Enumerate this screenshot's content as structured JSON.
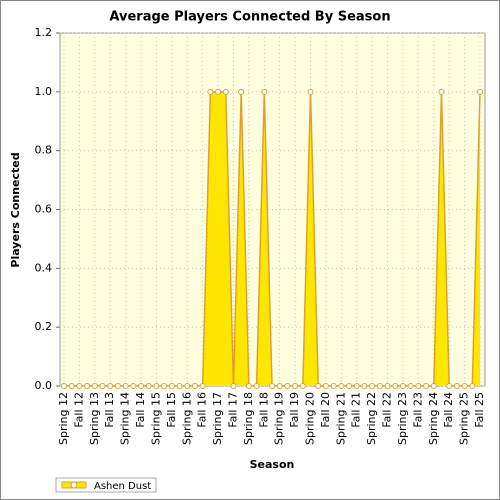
{
  "chart_data": {
    "type": "area",
    "title": "Average Players Connected By Season",
    "xlabel": "Season",
    "ylabel": "Players Connected",
    "categories": [
      "Spring 12",
      null,
      "Fall 12",
      null,
      "Spring 13",
      null,
      "Fall 13",
      null,
      "Spring 14",
      null,
      "Fall 14",
      null,
      "Spring 15",
      null,
      "Fall 15",
      null,
      "Spring 16",
      null,
      "Fall 16",
      null,
      "Spring 17",
      null,
      "Fall 17",
      null,
      "Spring 18",
      null,
      "Fall 18",
      null,
      "Spring 19",
      null,
      "Fall 19",
      null,
      "Spring 20",
      null,
      "Fall 20",
      null,
      "Spring 21",
      null,
      "Fall 21",
      null,
      "Spring 22",
      null,
      "Fall 22",
      null,
      "Spring 23",
      null,
      "Fall 23",
      null,
      "Spring 24",
      null,
      "Fall 24",
      null,
      "Spring 25",
      null,
      "Fall 25"
    ],
    "series": [
      {
        "name": "Ashen Dust",
        "color": "#ffe600",
        "line_color": "#e0a030",
        "values": [
          0,
          0,
          0,
          0,
          0,
          0,
          0,
          0,
          0,
          0,
          0,
          0,
          0,
          0,
          0,
          0,
          0,
          0,
          0,
          1,
          1,
          1,
          0,
          1,
          0,
          0,
          1,
          0,
          0,
          0,
          0,
          0,
          1,
          0,
          0,
          0,
          0,
          0,
          0,
          0,
          0,
          0,
          0,
          0,
          0,
          0,
          0,
          0,
          0,
          1,
          0,
          0,
          0,
          0,
          1
        ]
      }
    ],
    "ylim": [
      0,
      1.2
    ],
    "yticks": [
      {
        "value": 0,
        "label": "0.0"
      },
      0.2,
      0.4,
      0.6,
      0.8,
      {
        "value": 1,
        "label": "1.0"
      },
      1.2
    ],
    "grid": true,
    "legend": "bottom-left"
  }
}
